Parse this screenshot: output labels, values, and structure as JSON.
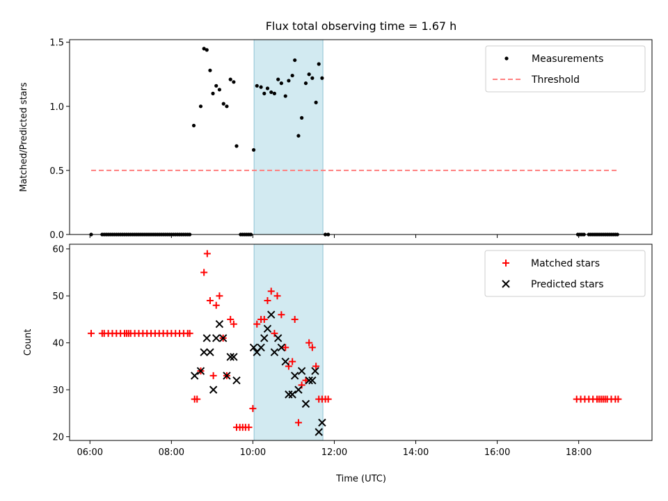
{
  "chart_data": {
    "title": "Flux total observing time = 1.67 h",
    "xlabel": "Time (UTC)",
    "x_ticks": [
      "06:00",
      "08:00",
      "10:00",
      "12:00",
      "14:00",
      "16:00",
      "18:00"
    ],
    "x_tick_hours": [
      6,
      8,
      10,
      12,
      14,
      16,
      18
    ],
    "xlim_hours": [
      5.5,
      19.8
    ],
    "shaded_interval_hours": [
      10.03,
      11.72
    ],
    "shade_color": "#add8e6",
    "panels": [
      {
        "type": "scatter",
        "ylabel": "Matched/Predicted stars",
        "ylim": [
          0,
          1.52
        ],
        "y_ticks": [
          0.0,
          0.5,
          1.0,
          1.5
        ],
        "y_tick_labels": [
          "0.0",
          "0.5",
          "1.0",
          "1.5"
        ],
        "legend": "top-right",
        "series": [
          {
            "name": "Measurements",
            "style": "dot",
            "color": "#000000",
            "points": [
              [
                6.03,
                0.0
              ],
              [
                6.3,
                0.0
              ],
              [
                6.35,
                0.0
              ],
              [
                6.4,
                0.0
              ],
              [
                6.45,
                0.0
              ],
              [
                6.5,
                0.0
              ],
              [
                6.55,
                0.0
              ],
              [
                6.6,
                0.0
              ],
              [
                6.65,
                0.0
              ],
              [
                6.7,
                0.0
              ],
              [
                6.75,
                0.0
              ],
              [
                6.8,
                0.0
              ],
              [
                6.85,
                0.0
              ],
              [
                6.9,
                0.0
              ],
              [
                6.95,
                0.0
              ],
              [
                7.0,
                0.0
              ],
              [
                7.05,
                0.0
              ],
              [
                7.1,
                0.0
              ],
              [
                7.15,
                0.0
              ],
              [
                7.2,
                0.0
              ],
              [
                7.25,
                0.0
              ],
              [
                7.3,
                0.0
              ],
              [
                7.35,
                0.0
              ],
              [
                7.4,
                0.0
              ],
              [
                7.45,
                0.0
              ],
              [
                7.5,
                0.0
              ],
              [
                7.55,
                0.0
              ],
              [
                7.6,
                0.0
              ],
              [
                7.65,
                0.0
              ],
              [
                7.7,
                0.0
              ],
              [
                7.75,
                0.0
              ],
              [
                7.8,
                0.0
              ],
              [
                7.85,
                0.0
              ],
              [
                7.9,
                0.0
              ],
              [
                7.95,
                0.0
              ],
              [
                8.0,
                0.0
              ],
              [
                8.05,
                0.0
              ],
              [
                8.1,
                0.0
              ],
              [
                8.15,
                0.0
              ],
              [
                8.2,
                0.0
              ],
              [
                8.25,
                0.0
              ],
              [
                8.3,
                0.0
              ],
              [
                8.35,
                0.0
              ],
              [
                8.4,
                0.0
              ],
              [
                8.45,
                0.0
              ],
              [
                8.55,
                0.85
              ],
              [
                8.72,
                1.0
              ],
              [
                8.8,
                1.45
              ],
              [
                8.87,
                1.44
              ],
              [
                8.95,
                1.28
              ],
              [
                9.02,
                1.1
              ],
              [
                9.1,
                1.16
              ],
              [
                9.18,
                1.13
              ],
              [
                9.28,
                1.02
              ],
              [
                9.36,
                1.0
              ],
              [
                9.45,
                1.21
              ],
              [
                9.53,
                1.19
              ],
              [
                9.6,
                0.69
              ],
              [
                9.7,
                0.0
              ],
              [
                9.75,
                0.0
              ],
              [
                9.8,
                0.0
              ],
              [
                9.85,
                0.0
              ],
              [
                9.9,
                0.0
              ],
              [
                9.95,
                0.0
              ],
              [
                10.02,
                0.66
              ],
              [
                10.1,
                1.16
              ],
              [
                10.2,
                1.15
              ],
              [
                10.28,
                1.1
              ],
              [
                10.36,
                1.14
              ],
              [
                10.45,
                1.11
              ],
              [
                10.53,
                1.1
              ],
              [
                10.62,
                1.21
              ],
              [
                10.7,
                1.18
              ],
              [
                10.8,
                1.08
              ],
              [
                10.88,
                1.2
              ],
              [
                10.97,
                1.24
              ],
              [
                11.03,
                1.36
              ],
              [
                11.12,
                0.77
              ],
              [
                11.2,
                0.91
              ],
              [
                11.3,
                1.18
              ],
              [
                11.38,
                1.25
              ],
              [
                11.46,
                1.22
              ],
              [
                11.55,
                1.03
              ],
              [
                11.62,
                1.33
              ],
              [
                11.7,
                1.22
              ],
              [
                11.78,
                0.0
              ],
              [
                11.85,
                0.0
              ],
              [
                17.98,
                0.0
              ],
              [
                18.03,
                0.0
              ],
              [
                18.08,
                0.0
              ],
              [
                18.13,
                0.0
              ],
              [
                18.25,
                0.0
              ],
              [
                18.3,
                0.0
              ],
              [
                18.35,
                0.0
              ],
              [
                18.4,
                0.0
              ],
              [
                18.45,
                0.0
              ],
              [
                18.5,
                0.0
              ],
              [
                18.55,
                0.0
              ],
              [
                18.6,
                0.0
              ],
              [
                18.65,
                0.0
              ],
              [
                18.7,
                0.0
              ],
              [
                18.75,
                0.0
              ],
              [
                18.8,
                0.0
              ],
              [
                18.85,
                0.0
              ],
              [
                18.9,
                0.0
              ],
              [
                18.95,
                0.0
              ]
            ]
          },
          {
            "name": "Threshold",
            "style": "dashed-line",
            "color": "#ff7f7f",
            "points": [
              [
                6.03,
                0.5
              ],
              [
                18.97,
                0.5
              ]
            ]
          }
        ]
      },
      {
        "type": "scatter",
        "ylabel": "Count",
        "ylim": [
          19.2,
          61
        ],
        "y_ticks": [
          20,
          30,
          40,
          50,
          60
        ],
        "y_tick_labels": [
          "20",
          "30",
          "40",
          "50",
          "60"
        ],
        "legend": "top-right",
        "series": [
          {
            "name": "Matched stars",
            "style": "plus",
            "color": "#ff0000",
            "points": [
              [
                6.03,
                42
              ],
              [
                6.3,
                42
              ],
              [
                6.35,
                42
              ],
              [
                6.45,
                42
              ],
              [
                6.55,
                42
              ],
              [
                6.65,
                42
              ],
              [
                6.75,
                42
              ],
              [
                6.85,
                42
              ],
              [
                6.9,
                42
              ],
              [
                6.95,
                42
              ],
              [
                7.0,
                42
              ],
              [
                7.1,
                42
              ],
              [
                7.2,
                42
              ],
              [
                7.3,
                42
              ],
              [
                7.4,
                42
              ],
              [
                7.5,
                42
              ],
              [
                7.6,
                42
              ],
              [
                7.7,
                42
              ],
              [
                7.8,
                42
              ],
              [
                7.9,
                42
              ],
              [
                8.0,
                42
              ],
              [
                8.1,
                42
              ],
              [
                8.2,
                42
              ],
              [
                8.3,
                42
              ],
              [
                8.4,
                42
              ],
              [
                8.45,
                42
              ],
              [
                8.57,
                28
              ],
              [
                8.63,
                28
              ],
              [
                8.72,
                34
              ],
              [
                8.8,
                55
              ],
              [
                8.88,
                59
              ],
              [
                8.95,
                49
              ],
              [
                9.03,
                33
              ],
              [
                9.1,
                48
              ],
              [
                9.18,
                50
              ],
              [
                9.27,
                41
              ],
              [
                9.36,
                33
              ],
              [
                9.45,
                45
              ],
              [
                9.53,
                44
              ],
              [
                9.6,
                22
              ],
              [
                9.68,
                22
              ],
              [
                9.75,
                22
              ],
              [
                9.82,
                22
              ],
              [
                9.9,
                22
              ],
              [
                10.0,
                26
              ],
              [
                10.1,
                44
              ],
              [
                10.2,
                45
              ],
              [
                10.28,
                45
              ],
              [
                10.36,
                49
              ],
              [
                10.45,
                51
              ],
              [
                10.53,
                42
              ],
              [
                10.6,
                50
              ],
              [
                10.7,
                46
              ],
              [
                10.8,
                39
              ],
              [
                10.88,
                35
              ],
              [
                10.97,
                36
              ],
              [
                11.03,
                45
              ],
              [
                11.12,
                23
              ],
              [
                11.2,
                31
              ],
              [
                11.3,
                32
              ],
              [
                11.38,
                40
              ],
              [
                11.46,
                39
              ],
              [
                11.55,
                35
              ],
              [
                11.62,
                28
              ],
              [
                11.7,
                28
              ],
              [
                11.78,
                28
              ],
              [
                11.85,
                28
              ],
              [
                17.95,
                28
              ],
              [
                18.05,
                28
              ],
              [
                18.15,
                28
              ],
              [
                18.25,
                28
              ],
              [
                18.35,
                28
              ],
              [
                18.45,
                28
              ],
              [
                18.5,
                28
              ],
              [
                18.55,
                28
              ],
              [
                18.6,
                28
              ],
              [
                18.65,
                28
              ],
              [
                18.7,
                28
              ],
              [
                18.8,
                28
              ],
              [
                18.9,
                28
              ],
              [
                18.97,
                28
              ]
            ]
          },
          {
            "name": "Predicted stars",
            "style": "x",
            "color": "#000000",
            "points": [
              [
                8.57,
                33
              ],
              [
                8.72,
                34
              ],
              [
                8.8,
                38
              ],
              [
                8.87,
                41
              ],
              [
                8.95,
                38
              ],
              [
                9.03,
                30
              ],
              [
                9.1,
                41
              ],
              [
                9.18,
                44
              ],
              [
                9.27,
                41
              ],
              [
                9.36,
                33
              ],
              [
                9.45,
                37
              ],
              [
                9.53,
                37
              ],
              [
                9.6,
                32
              ],
              [
                10.02,
                39
              ],
              [
                10.1,
                38
              ],
              [
                10.2,
                39
              ],
              [
                10.28,
                41
              ],
              [
                10.36,
                43
              ],
              [
                10.45,
                46
              ],
              [
                10.53,
                38
              ],
              [
                10.62,
                41
              ],
              [
                10.7,
                39
              ],
              [
                10.8,
                36
              ],
              [
                10.88,
                29
              ],
              [
                10.97,
                29
              ],
              [
                11.03,
                33
              ],
              [
                11.12,
                30
              ],
              [
                11.2,
                34
              ],
              [
                11.3,
                27
              ],
              [
                11.38,
                32
              ],
              [
                11.46,
                32
              ],
              [
                11.53,
                34
              ],
              [
                11.62,
                21
              ],
              [
                11.7,
                23
              ]
            ]
          }
        ]
      }
    ]
  }
}
